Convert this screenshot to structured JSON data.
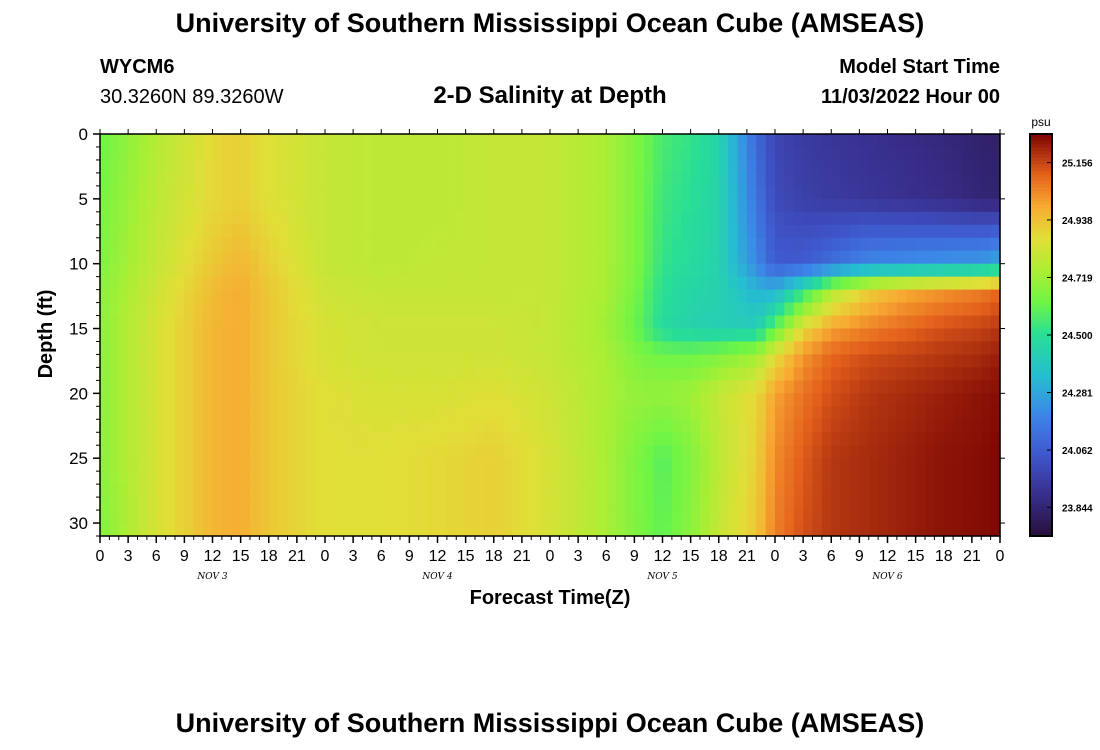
{
  "header": {
    "title": "University of Southern Mississippi Ocean Cube (AMSEAS)",
    "station_id": "WYCM6",
    "station_coords": "30.3260N  89.3260W",
    "plot_title": "2-D Salinity at Depth",
    "model_start_label": "Model Start Time",
    "model_start_value": "11/03/2022 Hour 00"
  },
  "footer": {
    "title": "University of Southern Mississippi Ocean Cube (AMSEAS)"
  },
  "chart_data": {
    "type": "heatmap",
    "xlabel": "Forecast Time(Z)",
    "ylabel": "Depth (ft)",
    "x_tick_labels": [
      "0",
      "3",
      "6",
      "9",
      "12",
      "15",
      "18",
      "21",
      "0",
      "3",
      "6",
      "9",
      "12",
      "15",
      "18",
      "21",
      "0",
      "3",
      "6",
      "9",
      "12",
      "15",
      "18",
      "21",
      "0",
      "3",
      "6",
      "9",
      "12",
      "15",
      "18",
      "21",
      "0"
    ],
    "x_range_hours": [
      0,
      96
    ],
    "day_labels": [
      {
        "label": "NOV 3",
        "hour": 12
      },
      {
        "label": "NOV 4",
        "hour": 36
      },
      {
        "label": "NOV 5",
        "hour": 60
      },
      {
        "label": "NOV 6",
        "hour": 84
      }
    ],
    "y_ticks": [
      0,
      5,
      10,
      15,
      20,
      25,
      30
    ],
    "ylim": [
      0,
      31
    ],
    "y_inverted": true,
    "colorbar": {
      "unit": "psu",
      "min": 23.735,
      "max": 25.265,
      "tick_labels": [
        "25.156",
        "24.938",
        "24.719",
        "24.500",
        "24.281",
        "24.062",
        "23.844"
      ],
      "ticks": [
        25.156,
        24.938,
        24.719,
        24.5,
        24.281,
        24.062,
        23.844
      ]
    },
    "depths_ft": [
      0,
      5,
      10,
      12,
      15,
      17,
      20,
      25,
      31
    ],
    "hours": [
      0,
      6,
      12,
      15,
      18,
      24,
      30,
      36,
      42,
      48,
      54,
      57,
      60,
      63,
      66,
      70,
      72,
      75,
      78,
      82,
      86,
      90,
      94,
      96
    ],
    "values_psu": [
      [
        24.62,
        24.76,
        24.88,
        24.9,
        24.86,
        24.8,
        24.78,
        24.78,
        24.8,
        24.8,
        24.74,
        24.66,
        24.56,
        24.52,
        24.45,
        24.1,
        23.98,
        23.94,
        23.92,
        23.9,
        23.88,
        23.86,
        23.83,
        23.82
      ],
      [
        24.64,
        24.78,
        24.88,
        24.9,
        24.86,
        24.8,
        24.78,
        24.78,
        24.8,
        24.8,
        24.74,
        24.66,
        24.54,
        24.5,
        24.45,
        24.14,
        24.0,
        23.96,
        23.94,
        23.92,
        23.9,
        23.88,
        23.85,
        23.84
      ],
      [
        24.66,
        24.8,
        24.92,
        24.96,
        24.9,
        24.8,
        24.78,
        24.79,
        24.8,
        24.8,
        24.74,
        24.66,
        24.52,
        24.48,
        24.44,
        24.2,
        24.06,
        24.06,
        24.12,
        24.2,
        24.22,
        24.24,
        24.26,
        24.3
      ],
      [
        24.68,
        24.82,
        24.95,
        24.98,
        24.92,
        24.82,
        24.8,
        24.8,
        24.8,
        24.8,
        24.74,
        24.64,
        24.5,
        24.46,
        24.44,
        24.32,
        24.3,
        24.5,
        24.74,
        24.9,
        24.98,
        25.02,
        25.06,
        25.1
      ],
      [
        24.68,
        24.84,
        24.96,
        24.98,
        24.92,
        24.84,
        24.82,
        24.82,
        24.82,
        24.8,
        24.72,
        24.62,
        24.48,
        24.44,
        24.42,
        24.42,
        24.6,
        24.88,
        25.0,
        25.06,
        25.1,
        25.14,
        25.16,
        25.18
      ],
      [
        24.68,
        24.84,
        24.96,
        24.98,
        24.92,
        24.84,
        24.82,
        24.82,
        24.82,
        24.8,
        24.74,
        24.66,
        24.62,
        24.62,
        24.65,
        24.72,
        24.86,
        25.02,
        25.1,
        25.14,
        25.16,
        25.18,
        25.2,
        25.22
      ],
      [
        24.68,
        24.84,
        24.96,
        24.98,
        24.92,
        24.86,
        24.84,
        24.84,
        24.86,
        24.82,
        24.74,
        24.7,
        24.7,
        24.72,
        24.8,
        24.88,
        25.0,
        25.08,
        25.14,
        25.18,
        25.2,
        25.22,
        25.24,
        25.25
      ],
      [
        24.68,
        24.84,
        24.96,
        24.98,
        24.92,
        24.86,
        24.86,
        24.88,
        24.9,
        24.84,
        24.74,
        24.66,
        24.58,
        24.66,
        24.78,
        24.9,
        25.04,
        25.12,
        25.18,
        25.2,
        25.22,
        25.24,
        25.25,
        25.26
      ],
      [
        24.66,
        24.84,
        24.96,
        24.98,
        24.92,
        24.86,
        24.86,
        24.88,
        24.9,
        24.84,
        24.74,
        24.66,
        24.6,
        24.68,
        24.8,
        24.92,
        25.06,
        25.14,
        25.18,
        25.2,
        25.22,
        25.24,
        25.25,
        25.26
      ]
    ]
  }
}
